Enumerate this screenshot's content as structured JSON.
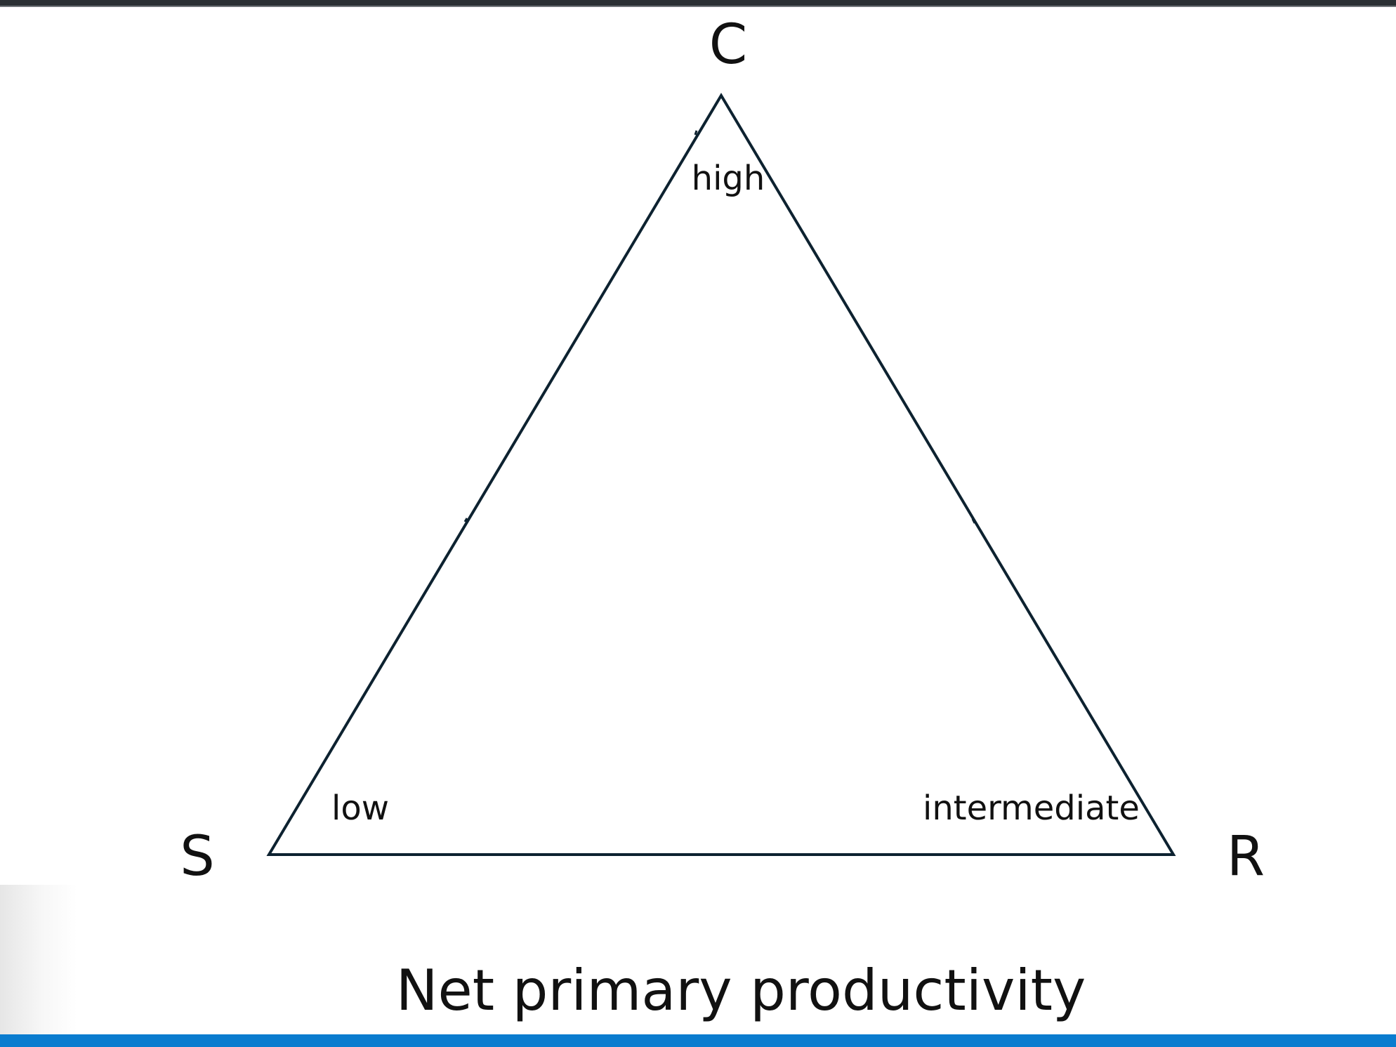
{
  "diagram": {
    "vertices": {
      "top": "C",
      "left": "S",
      "right": "R"
    },
    "levels": {
      "top": "high",
      "left": "low",
      "right": "intermediate"
    },
    "caption": "Net primary productivity",
    "colors": {
      "outline": "#0d2230",
      "text": "#111111",
      "accent_bar": "#0a7ccf"
    }
  }
}
